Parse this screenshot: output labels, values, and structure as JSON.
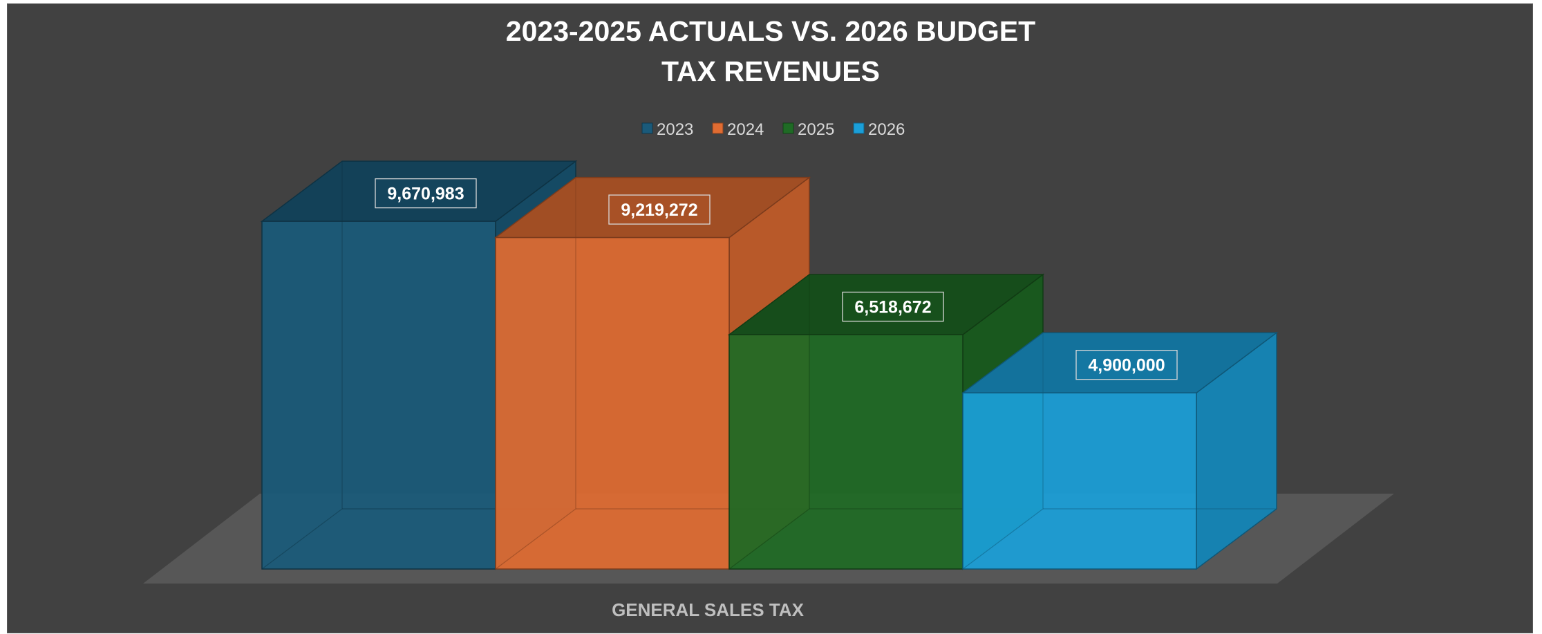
{
  "chart_data": {
    "type": "bar",
    "title": "2023-2025 ACTUALS VS. 2026 BUDGET",
    "subtitle": "TAX REVENUES",
    "categories": [
      "GENERAL SALES TAX"
    ],
    "series": [
      {
        "name": "2023",
        "values": [
          9670983
        ],
        "label": "9,670,983",
        "color": "#1a5a7a"
      },
      {
        "name": "2024",
        "values": [
          9219272
        ],
        "label": "9,219,272",
        "color": "#e06c32"
      },
      {
        "name": "2025",
        "values": [
          6518672
        ],
        "label": "6,518,672",
        "color": "#1f6b25"
      },
      {
        "name": "2026",
        "values": [
          4900000
        ],
        "label": "4,900,000",
        "color": "#1b9fd8"
      }
    ],
    "legend_position": "top",
    "style": "3d-column",
    "background_color": "#414141",
    "floor_color": "#575757",
    "grid": false
  }
}
